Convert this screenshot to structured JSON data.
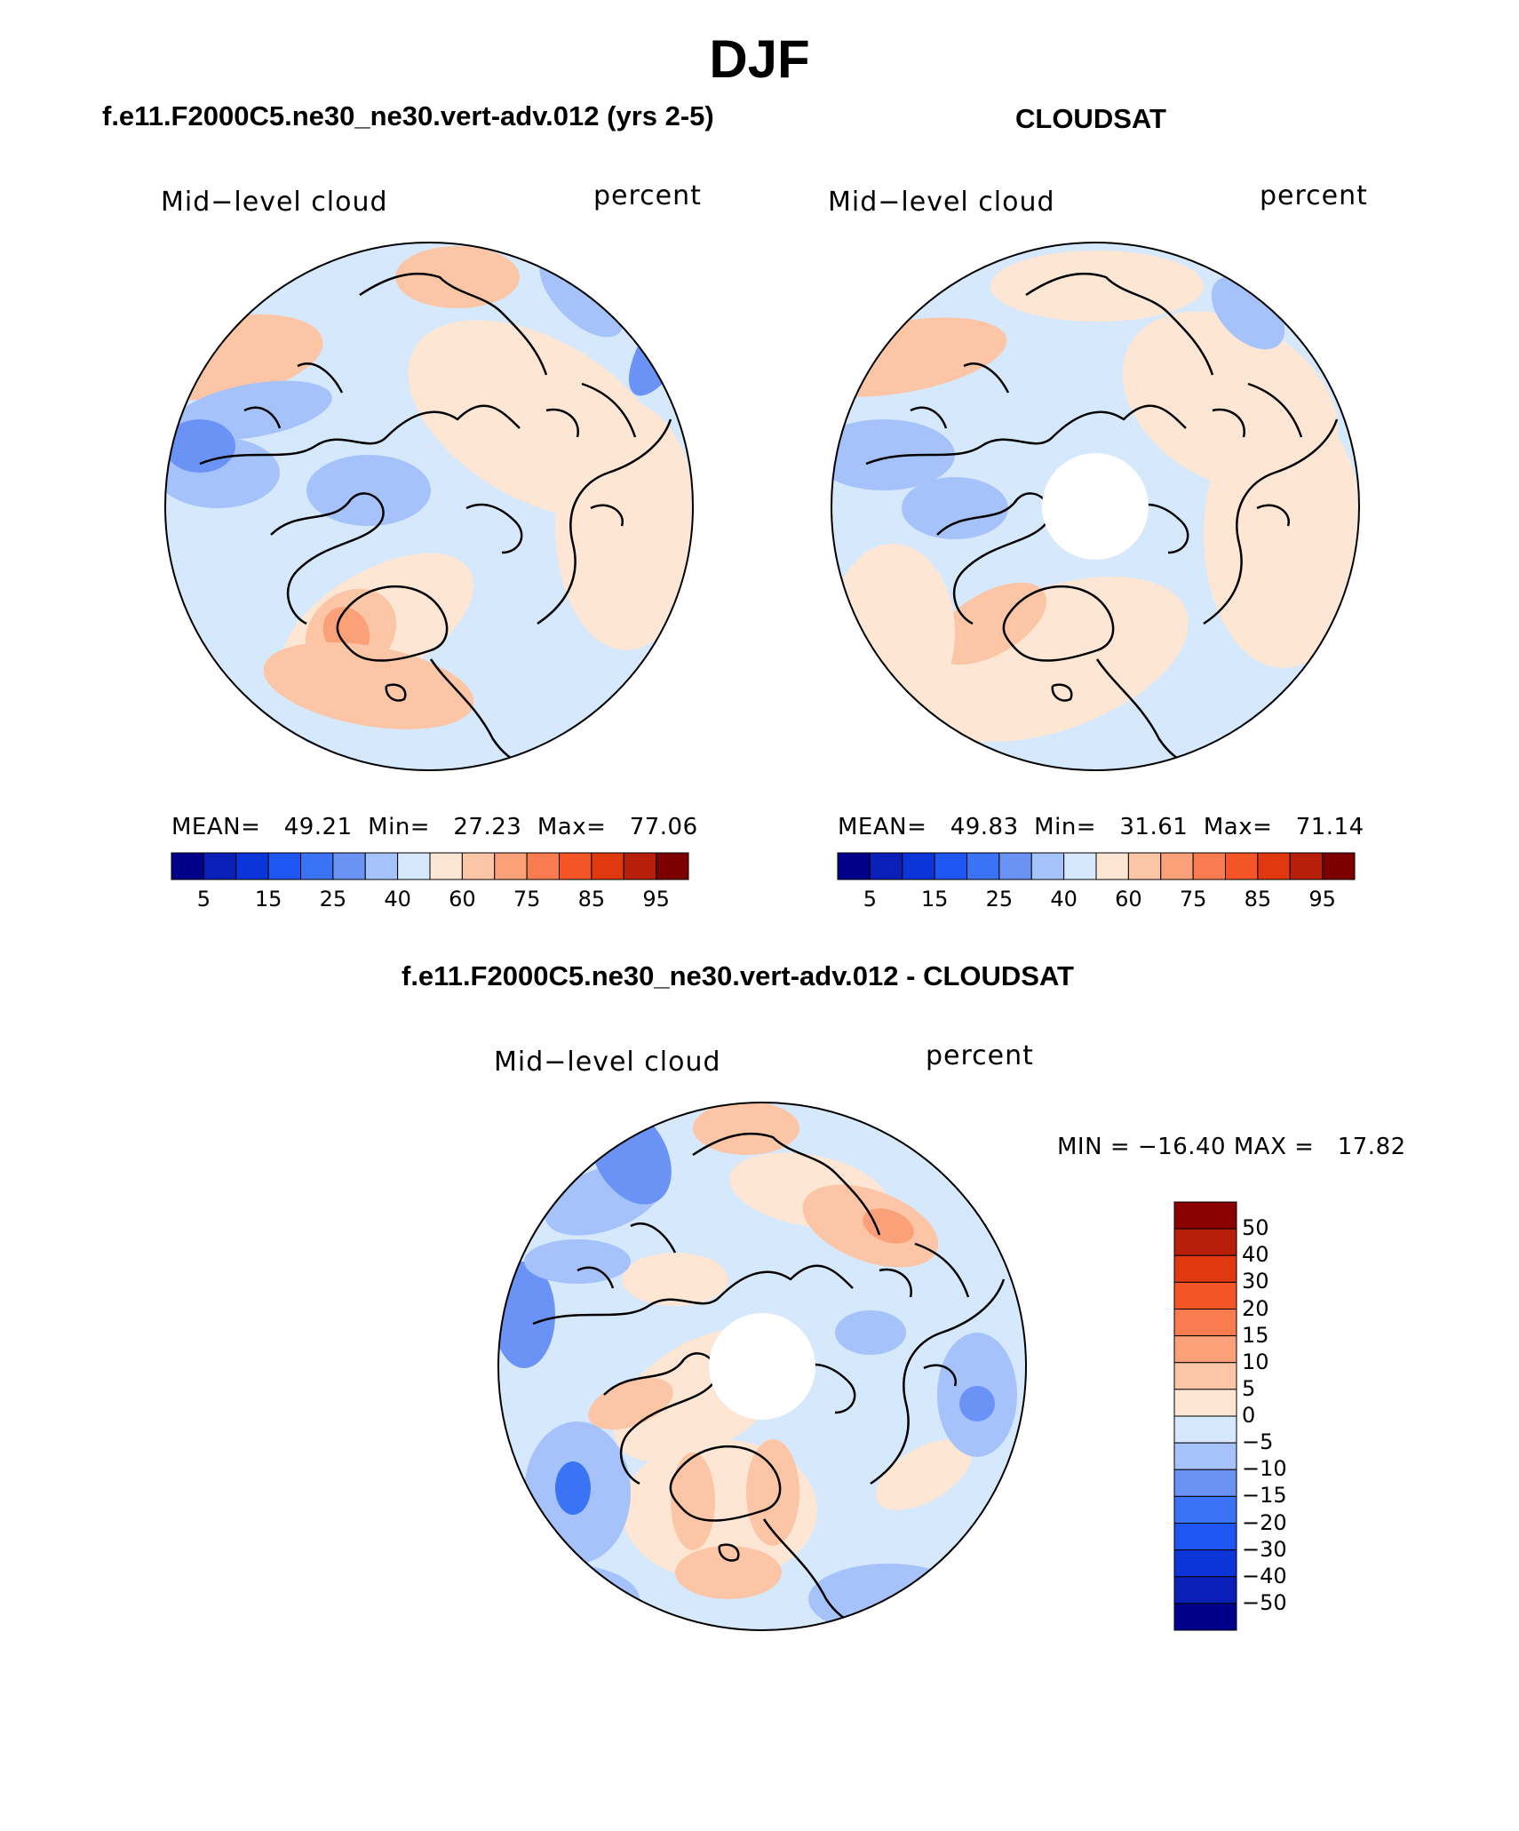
{
  "title": "DJF",
  "panels": [
    {
      "subtitle": "f.e11.F2000C5.ne30_ne30.vert-adv.012 (yrs 2-5)",
      "field_label": "Mid−level cloud",
      "units_label": "percent",
      "stats": {
        "mean_label": "MEAN=",
        "mean": "49.21",
        "min_label": "Min=",
        "min": "27.23",
        "max_label": "Max=",
        "max": "77.06"
      },
      "has_pole_hole": false
    },
    {
      "subtitle": "CLOUDSAT",
      "field_label": "Mid−level cloud",
      "units_label": "percent",
      "stats": {
        "mean_label": "MEAN=",
        "mean": "49.83",
        "min_label": "Min=",
        "min": "31.61",
        "max_label": "Max=",
        "max": "71.14"
      },
      "has_pole_hole": true
    }
  ],
  "abs_colorbar": {
    "colors": [
      "#00008b",
      "#0a1fb8",
      "#0b35d8",
      "#1f55f0",
      "#3b73f5",
      "#6b93f5",
      "#a6c2fa",
      "#d6e8fc",
      "#fde6d3",
      "#fcc6a6",
      "#fba17a",
      "#f87c50",
      "#f35527",
      "#e0380f",
      "#b81f0a",
      "#7d0000"
    ],
    "tick_labels": [
      "5",
      "15",
      "25",
      "40",
      "60",
      "75",
      "85",
      "95"
    ]
  },
  "diff_panel": {
    "subtitle": "f.e11.F2000C5.ne30_ne30.vert-adv.012 - CLOUDSAT",
    "field_label": "Mid−level cloud",
    "units_label": "percent",
    "minmax_text": "MIN = −16.40 MAX =   17.82",
    "colorbar": {
      "colors_top_to_bottom": [
        "#8b0000",
        "#b81f0a",
        "#e0380f",
        "#f35527",
        "#f87c50",
        "#fba17a",
        "#fcc6a6",
        "#fde6d3",
        "#d6e8fc",
        "#a6c2fa",
        "#6b93f5",
        "#3b73f5",
        "#1f55f0",
        "#0b35d8",
        "#0a1fb8",
        "#00008b"
      ],
      "tick_labels_top_to_bottom": [
        "50",
        "40",
        "30",
        "20",
        "15",
        "10",
        "5",
        "0",
        "−5",
        "−10",
        "−15",
        "−20",
        "−30",
        "−40",
        "−50"
      ]
    }
  },
  "map_palette": {
    "base_light_blue": "#d6e8fc",
    "light_blue": "#a6c2fa",
    "mid_blue": "#6b93f5",
    "deep_blue": "#3b73f5",
    "peach": "#fde6d3",
    "salmon": "#fcc6a6",
    "orange": "#fba17a",
    "red_orange": "#f87c50"
  }
}
